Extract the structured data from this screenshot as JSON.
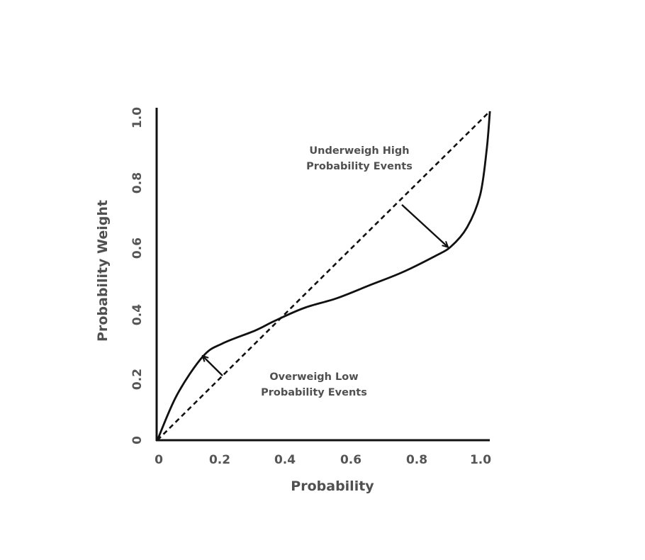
{
  "chart_data": {
    "type": "line",
    "title": "",
    "xlabel": "Probability",
    "ylabel": "Probability Weight",
    "xlim": [
      0,
      1.0
    ],
    "ylim": [
      0,
      1.0
    ],
    "x_ticks": [
      "0",
      "0.2",
      "0.4",
      "0.6",
      "0.8",
      "1.0"
    ],
    "y_ticks": [
      "0",
      "0.2",
      "0.4",
      "0.6",
      "0.8",
      "1.0"
    ],
    "grid": false,
    "legend": "none",
    "series": [
      {
        "style": "dashed",
        "color": "#111111",
        "points": [
          [
            0,
            0
          ],
          [
            1.02,
            1.02
          ]
        ]
      },
      {
        "style": "solid",
        "color": "#111111",
        "points": [
          [
            0,
            0
          ],
          [
            0.06,
            0.14
          ],
          [
            0.14,
            0.26
          ],
          [
            0.2,
            0.3
          ],
          [
            0.3,
            0.34
          ],
          [
            0.36,
            0.37
          ],
          [
            0.45,
            0.41
          ],
          [
            0.55,
            0.44
          ],
          [
            0.65,
            0.48
          ],
          [
            0.75,
            0.52
          ],
          [
            0.85,
            0.57
          ],
          [
            0.9,
            0.6
          ],
          [
            0.95,
            0.66
          ],
          [
            0.99,
            0.76
          ],
          [
            1.01,
            0.9
          ],
          [
            1.02,
            1.02
          ]
        ]
      }
    ],
    "annotations": [
      {
        "text": [
          "Underweigh High",
          "Probability Events"
        ],
        "arrow_from": [
          0.75,
          0.73
        ],
        "arrow_to": [
          0.89,
          0.6
        ]
      },
      {
        "text": [
          "Overweigh Low",
          "Probability Events"
        ],
        "arrow_from": [
          0.2,
          0.2
        ],
        "arrow_to": [
          0.14,
          0.26
        ]
      }
    ]
  }
}
